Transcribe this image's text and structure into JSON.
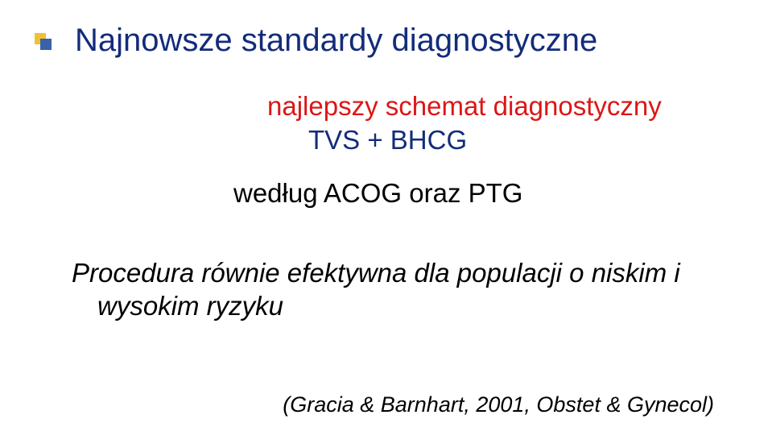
{
  "title": "Najnowsze standardy diagnostyczne",
  "subtitle": "najlepszy schemat diagnostyczny",
  "scheme": "TVS + BHCG",
  "according": "według ACOG oraz PTG",
  "procedure_line1": "Procedura równie efektywna dla populacji o niskim i",
  "procedure_line2": "wysokim ryzyku",
  "citation": "(Gracia & Barnhart, 2001, Obstet & Gynecol)",
  "colors": {
    "title_color": "#132c7a",
    "subtitle_color": "#dc1616",
    "scheme_color": "#132c7a",
    "body_text": "#000000",
    "bullet_yellow": "#f2c030",
    "bullet_blue": "#3a62a8",
    "background": "#ffffff"
  },
  "typography": {
    "title_fontsize": 40,
    "body_fontsize": 33,
    "citation_fontsize": 27,
    "font_family": "Trebuchet MS"
  }
}
